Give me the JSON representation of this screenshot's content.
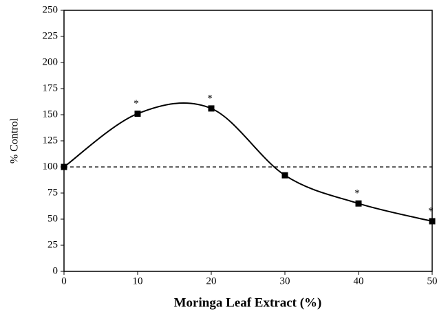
{
  "chart_data": {
    "type": "line",
    "x_label": "Moringa Leaf Extract (%)",
    "y_label": "% Control",
    "x": [
      0,
      10,
      20,
      30,
      40,
      50
    ],
    "series": [
      {
        "color": "#000000",
        "values": [
          100,
          151,
          156,
          92,
          65,
          48
        ],
        "point_labels": [
          null,
          "*",
          "*",
          null,
          "*",
          "*"
        ]
      }
    ],
    "reference_line": 100,
    "xlim": [
      0,
      50
    ],
    "xticks": [
      0,
      10,
      20,
      30,
      40,
      50
    ],
    "ylim": [
      0,
      250
    ],
    "yticks": [
      0,
      25,
      50,
      75,
      100,
      125,
      150,
      175,
      200,
      225,
      250
    ],
    "smooth": true,
    "grid": false
  }
}
